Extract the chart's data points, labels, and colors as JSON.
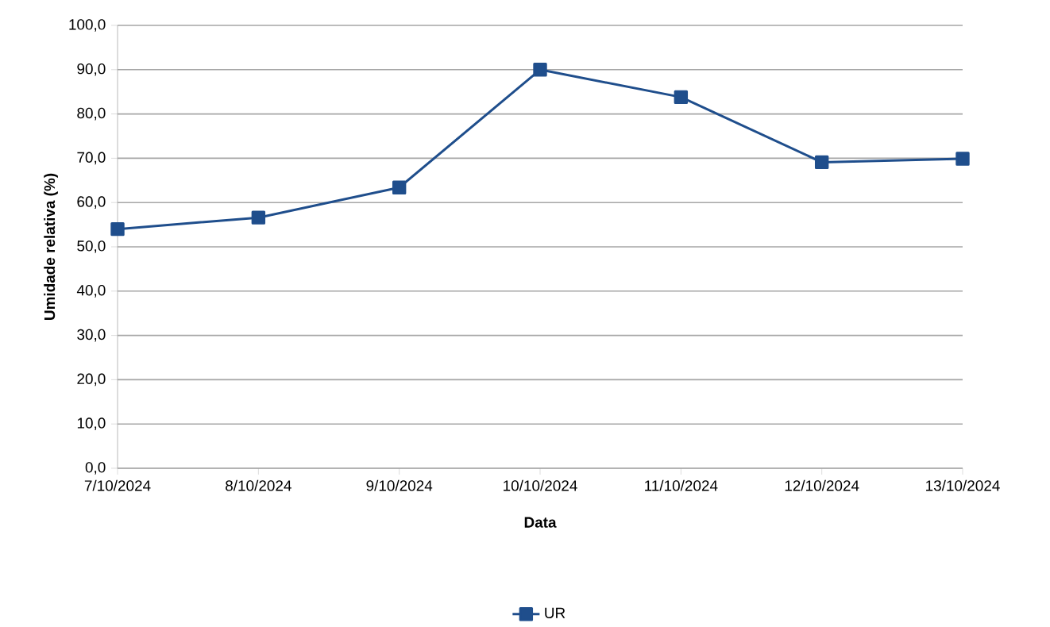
{
  "chart_data": {
    "type": "line",
    "xlabel": "Data",
    "ylabel": "Umidade relativa (%)",
    "categories": [
      "7/10/2024",
      "8/10/2024",
      "9/10/2024",
      "10/10/2024",
      "11/10/2024",
      "12/10/2024",
      "13/10/2024"
    ],
    "series": [
      {
        "name": "UR",
        "color": "#1f4e8c",
        "values": [
          54.0,
          56.6,
          63.4,
          90.0,
          83.8,
          69.1,
          69.9
        ]
      }
    ],
    "ylim": [
      0,
      100
    ],
    "yticks": [
      {
        "value": 0,
        "label": "0,0"
      },
      {
        "value": 10,
        "label": "10,0"
      },
      {
        "value": 20,
        "label": "20,0"
      },
      {
        "value": 30,
        "label": "30,0"
      },
      {
        "value": 40,
        "label": "40,0"
      },
      {
        "value": 50,
        "label": "50,0"
      },
      {
        "value": 60,
        "label": "60,0"
      },
      {
        "value": 70,
        "label": "70,0"
      },
      {
        "value": 80,
        "label": "80,0"
      },
      {
        "value": 90,
        "label": "90,0"
      },
      {
        "value": 100,
        "label": "100,0"
      }
    ],
    "grid": "y",
    "legend": "bottom",
    "marker": "square",
    "line_style": "solid"
  }
}
